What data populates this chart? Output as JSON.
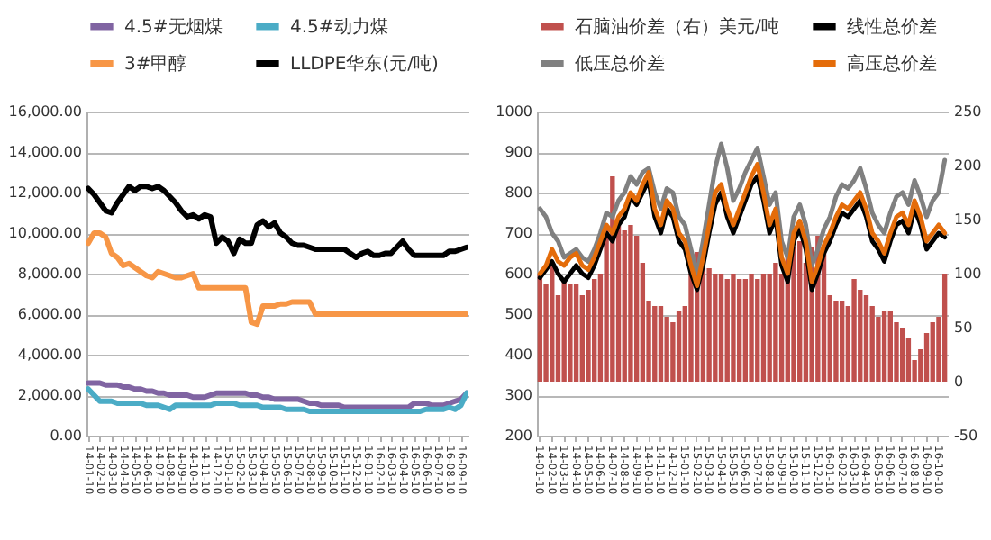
{
  "chart_data": [
    {
      "type": "line",
      "legend": "top",
      "grid": "y",
      "ylim": [
        0,
        16000
      ],
      "yticks": [
        {
          "value": 0,
          "label": "0.00"
        },
        {
          "value": 2000,
          "label": "2,000.00"
        },
        {
          "value": 4000,
          "label": "4,000.00"
        },
        {
          "value": 6000,
          "label": "6,000.00"
        },
        {
          "value": 8000,
          "label": "8,000.00"
        },
        {
          "value": 10000,
          "label": "10,000.00"
        },
        {
          "value": 12000,
          "label": "12,000.00"
        },
        {
          "value": 14000,
          "label": "14,000.00"
        },
        {
          "value": 16000,
          "label": "16,000.00"
        }
      ],
      "categories": [
        "14-01-10",
        null,
        "14-02-10",
        null,
        "14-03-10",
        null,
        "14-04-10",
        null,
        "14-05-10",
        null,
        "14-06-10",
        null,
        "14-07-10",
        null,
        "14-08-10",
        null,
        "14-09-10",
        null,
        "14-10-10",
        null,
        "14-11-10",
        null,
        "14-12-10",
        null,
        "15-01-10",
        null,
        "15-02-10",
        null,
        "15-03-10",
        null,
        "15-04-10",
        null,
        "15-05-10",
        null,
        "15-06-10",
        null,
        "15-07-10",
        null,
        "15-08-10",
        null,
        "15-09-10",
        null,
        "15-10-10",
        null,
        "15-11-10",
        null,
        "15-12-10",
        null,
        "16-01-10",
        null,
        "16-02-10",
        null,
        "16-03-10",
        null,
        "16-04-10",
        null,
        "16-05-10",
        null,
        "16-06-10",
        null,
        "16-07-10",
        null,
        "16-08-10",
        null,
        "16-09-10",
        null
      ],
      "series": [
        {
          "name": "4.5#无烟煤",
          "color": "#8064a2",
          "values": [
            2600,
            2600,
            2600,
            2500,
            2500,
            2500,
            2400,
            2400,
            2300,
            2300,
            2200,
            2200,
            2100,
            2100,
            2000,
            2000,
            2000,
            2000,
            1900,
            1900,
            1900,
            2000,
            2100,
            2100,
            2100,
            2100,
            2100,
            2100,
            2000,
            2000,
            1900,
            1900,
            1800,
            1800,
            1800,
            1800,
            1800,
            1700,
            1600,
            1600,
            1500,
            1500,
            1500,
            1500,
            1400,
            1400,
            1400,
            1400,
            1400,
            1400,
            1400,
            1400,
            1400,
            1400,
            1400,
            1400,
            1600,
            1600,
            1600,
            1500,
            1500,
            1500,
            1600,
            1700,
            1800,
            2100
          ]
        },
        {
          "name": "4.5#动力煤",
          "color": "#4bacc6",
          "values": [
            2300,
            2000,
            1700,
            1700,
            1700,
            1600,
            1600,
            1600,
            1600,
            1600,
            1500,
            1500,
            1500,
            1400,
            1300,
            1500,
            1500,
            1500,
            1500,
            1500,
            1500,
            1500,
            1600,
            1600,
            1600,
            1600,
            1500,
            1500,
            1500,
            1500,
            1400,
            1400,
            1400,
            1400,
            1300,
            1300,
            1300,
            1300,
            1200,
            1200,
            1200,
            1200,
            1200,
            1200,
            1200,
            1200,
            1200,
            1200,
            1200,
            1200,
            1200,
            1200,
            1200,
            1200,
            1200,
            1200,
            1200,
            1200,
            1300,
            1300,
            1300,
            1300,
            1400,
            1300,
            1500,
            2100
          ]
        },
        {
          "name": "3#甲醇",
          "color": "#f79646",
          "values": [
            9500,
            10000,
            10000,
            9800,
            9000,
            8800,
            8400,
            8500,
            8300,
            8100,
            7900,
            7800,
            8100,
            8000,
            7900,
            7800,
            7800,
            7900,
            8000,
            7300,
            7300,
            7300,
            7300,
            7300,
            7300,
            7300,
            7300,
            7300,
            5600,
            5500,
            6400,
            6400,
            6400,
            6500,
            6500,
            6600,
            6600,
            6600,
            6600,
            6000,
            6000,
            6000,
            6000,
            6000,
            6000,
            6000,
            6000,
            6000,
            6000,
            6000,
            6000,
            6000,
            6000,
            6000,
            6000,
            6000,
            6000,
            6000,
            6000,
            6000,
            6000,
            6000,
            6000,
            6000,
            6000,
            6000
          ]
        },
        {
          "name": "LLDPE华东(元/吨)",
          "color": "#000000",
          "values": [
            12200,
            11900,
            11500,
            11100,
            11000,
            11500,
            11900,
            12300,
            12100,
            12300,
            12300,
            12200,
            12300,
            12100,
            11800,
            11500,
            11100,
            10800,
            10900,
            10700,
            10900,
            10800,
            9500,
            9800,
            9600,
            9000,
            9700,
            9500,
            9500,
            10400,
            10600,
            10300,
            10500,
            10000,
            9800,
            9500,
            9400,
            9400,
            9300,
            9200,
            9200,
            9200,
            9200,
            9200,
            9200,
            9000,
            8800,
            9000,
            9100,
            8900,
            8900,
            9000,
            9000,
            9300,
            9600,
            9200,
            8900,
            8900,
            8900,
            8900,
            8900,
            8900,
            9100,
            9100,
            9200,
            9300
          ]
        }
      ]
    },
    {
      "type": "line",
      "legend": "top",
      "grid": "y",
      "ylim": [
        200,
        1000
      ],
      "yticks": [
        200,
        300,
        400,
        500,
        600,
        700,
        800,
        900,
        1000
      ],
      "y2lim": [
        -50,
        250
      ],
      "y2ticks": [
        -50,
        0,
        50,
        100,
        150,
        200,
        250
      ],
      "categories": [
        "14-01-10",
        null,
        "14-02-10",
        null,
        "14-03-10",
        null,
        "14-04-10",
        null,
        "14-05-10",
        null,
        "14-06-10",
        null,
        "14-07-10",
        null,
        "14-08-10",
        null,
        "14-09-10",
        null,
        "14-10-10",
        null,
        "14-11-10",
        null,
        "14-12-10",
        null,
        "15-01-10",
        null,
        "15-02-10",
        null,
        "15-03-10",
        null,
        "15-04-10",
        null,
        "15-05-10",
        null,
        "15-06-10",
        null,
        "15-07-10",
        null,
        "15-08-10",
        null,
        "15-09-10",
        null,
        "15-10-10",
        null,
        "15-11-10",
        null,
        "15-12-10",
        null,
        "16-01-10",
        null,
        "16-02-10",
        null,
        "16-03-10",
        null,
        "16-04-10",
        null,
        "16-05-10",
        null,
        "16-06-10",
        null,
        "16-07-10",
        null,
        "16-08-10",
        null,
        "16-09-10",
        null,
        "16-10-10",
        null
      ],
      "series": [
        {
          "name": "石脑油价差（右）美元/吨",
          "type": "bar",
          "axis": "y2",
          "color": "#c0504d",
          "values": [
            100,
            90,
            110,
            80,
            95,
            90,
            90,
            80,
            85,
            95,
            100,
            140,
            190,
            150,
            140,
            145,
            135,
            110,
            75,
            70,
            70,
            60,
            55,
            65,
            70,
            100,
            120,
            105,
            105,
            100,
            100,
            95,
            100,
            95,
            95,
            100,
            95,
            100,
            100,
            110,
            100,
            120,
            125,
            130,
            110,
            125,
            135,
            120,
            80,
            75,
            75,
            70,
            95,
            85,
            80,
            70,
            60,
            65,
            65,
            55,
            50,
            40,
            20,
            30,
            45,
            55,
            60,
            100
          ]
        },
        {
          "name": "线性总价差",
          "color": "#000000",
          "values": [
            590,
            610,
            630,
            600,
            580,
            600,
            620,
            600,
            590,
            620,
            660,
            700,
            680,
            720,
            740,
            790,
            770,
            800,
            830,
            740,
            700,
            760,
            740,
            680,
            660,
            600,
            560,
            620,
            700,
            770,
            800,
            740,
            700,
            740,
            780,
            820,
            840,
            780,
            700,
            740,
            620,
            580,
            680,
            710,
            660,
            560,
            600,
            650,
            680,
            720,
            750,
            740,
            760,
            780,
            740,
            680,
            660,
            630,
            680,
            720,
            730,
            700,
            760,
            720,
            660,
            680,
            700,
            690
          ]
        },
        {
          "name": "低压总价差",
          "color": "#808080",
          "values": [
            760,
            740,
            700,
            680,
            640,
            650,
            660,
            640,
            630,
            660,
            700,
            750,
            740,
            780,
            800,
            840,
            820,
            850,
            860,
            800,
            760,
            810,
            800,
            740,
            720,
            660,
            600,
            680,
            770,
            860,
            920,
            860,
            780,
            810,
            850,
            880,
            910,
            840,
            770,
            800,
            680,
            640,
            740,
            770,
            720,
            620,
            660,
            710,
            740,
            790,
            820,
            810,
            830,
            860,
            810,
            750,
            720,
            700,
            750,
            790,
            800,
            770,
            830,
            790,
            740,
            780,
            800,
            880
          ]
        },
        {
          "name": "高压总价差",
          "color": "#e46c0a",
          "values": [
            600,
            620,
            660,
            630,
            620,
            640,
            650,
            620,
            610,
            640,
            680,
            720,
            700,
            740,
            760,
            800,
            780,
            820,
            850,
            760,
            720,
            780,
            760,
            700,
            680,
            620,
            570,
            640,
            720,
            800,
            820,
            760,
            720,
            760,
            800,
            840,
            870,
            800,
            720,
            760,
            640,
            600,
            700,
            730,
            680,
            580,
            620,
            670,
            700,
            740,
            770,
            760,
            780,
            800,
            760,
            700,
            680,
            650,
            700,
            740,
            750,
            720,
            780,
            740,
            680,
            700,
            720,
            700
          ]
        }
      ]
    }
  ]
}
